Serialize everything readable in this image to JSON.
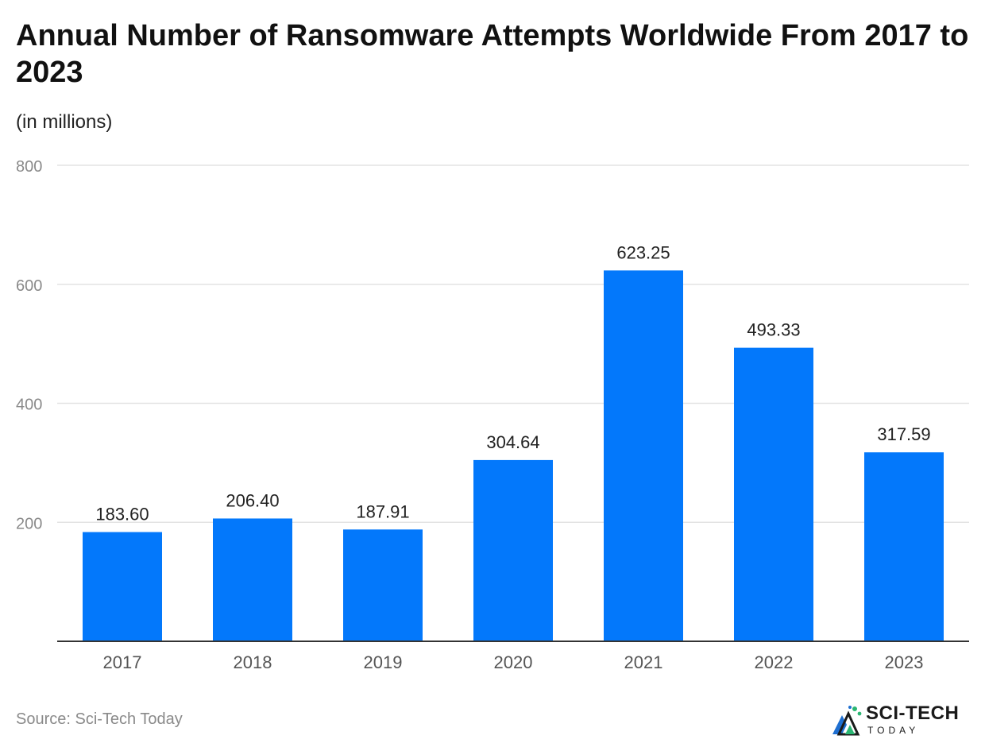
{
  "header": {
    "title": "Annual Number of Ransomware Attempts Worldwide From 2017 to 2023",
    "subtitle": "(in millions)"
  },
  "chart_data": {
    "type": "bar",
    "categories": [
      "2017",
      "2018",
      "2019",
      "2020",
      "2021",
      "2022",
      "2023"
    ],
    "values": [
      183.6,
      206.4,
      187.91,
      304.64,
      623.25,
      493.33,
      317.59
    ],
    "value_labels": [
      "183.60",
      "206.40",
      "187.91",
      "304.64",
      "623.25",
      "493.33",
      "317.59"
    ],
    "title": "Annual Number of Ransomware Attempts Worldwide From 2017 to 2023",
    "subtitle": "(in millions)",
    "xlabel": "",
    "ylabel": "",
    "ylim": [
      0,
      800
    ],
    "yticks": [
      200,
      400,
      600,
      800
    ],
    "grid": true,
    "bar_color": "#0378fb",
    "gridline_color": "#e3e3e3",
    "axis_color": "#333333",
    "tick_label_color": "#8a8a8a"
  },
  "footer": {
    "source": "Source: Sci-Tech Today",
    "brand_main": "SCI-TECH",
    "brand_sub": "TODAY",
    "brand_icon": "sci-tech-logo-icon"
  }
}
